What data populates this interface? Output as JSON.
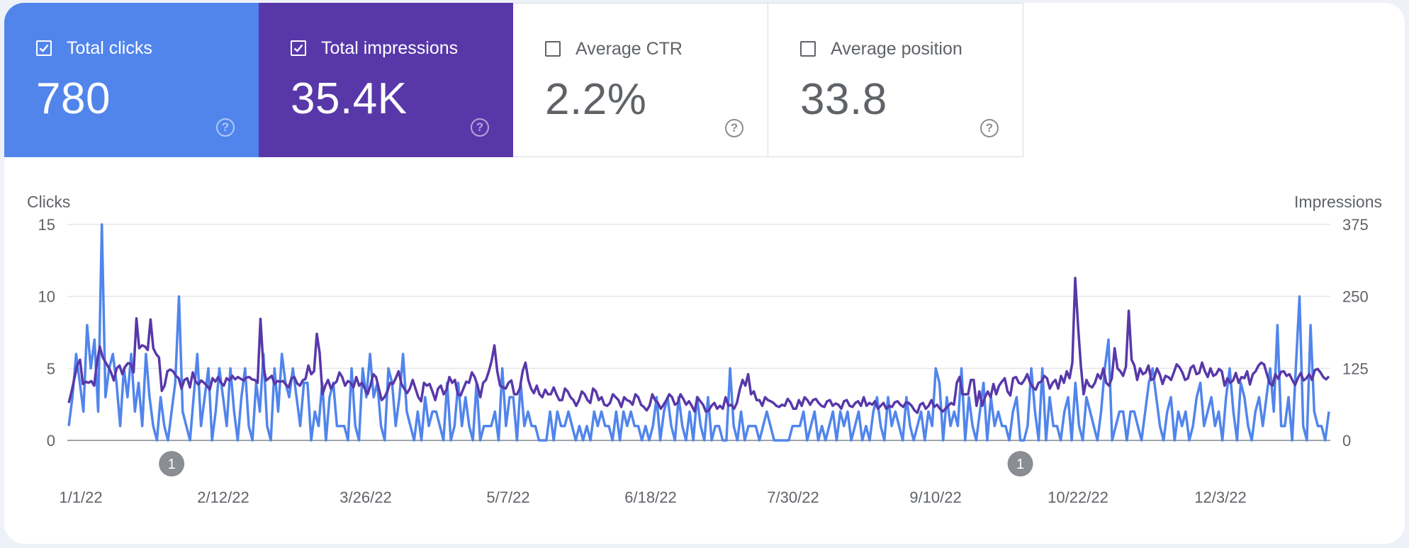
{
  "tiles": [
    {
      "label": "Total clicks",
      "value": "780",
      "checked": true,
      "color": "#5185ec"
    },
    {
      "label": "Total impressions",
      "value": "35.4K",
      "checked": true,
      "color": "#5838a9"
    },
    {
      "label": "Average CTR",
      "value": "2.2%",
      "checked": false,
      "color": "#ffffff"
    },
    {
      "label": "Average position",
      "value": "33.8",
      "checked": false,
      "color": "#ffffff"
    }
  ],
  "help_icon": "question-circle-icon",
  "chart_data": {
    "type": "line",
    "left_axis": {
      "title": "Clicks",
      "ticks": [
        "0",
        "5",
        "10",
        "15"
      ],
      "range": [
        0,
        15
      ]
    },
    "right_axis": {
      "title": "Impressions",
      "ticks": [
        "0",
        "125",
        "250",
        "375"
      ],
      "range": [
        0,
        375
      ]
    },
    "x_ticks": [
      "1/1/22",
      "2/12/22",
      "3/26/22",
      "5/7/22",
      "6/18/22",
      "7/30/22",
      "9/10/22",
      "10/22/22",
      "12/3/22"
    ],
    "annotations": [
      {
        "label": "1",
        "x_index": 28
      },
      {
        "label": "1",
        "x_index": 259
      }
    ],
    "series": [
      {
        "name": "Clicks",
        "axis": "left",
        "color": "#5185ec",
        "values": [
          1,
          3,
          6,
          4,
          2,
          8,
          5,
          7,
          2,
          15,
          3,
          5,
          6,
          4,
          1,
          5,
          3,
          6,
          2,
          4,
          1,
          6,
          3,
          1,
          0,
          3,
          1,
          0,
          2,
          4,
          10,
          2,
          1,
          0,
          3,
          6,
          1,
          3,
          5,
          0,
          2,
          5,
          3,
          1,
          5,
          2,
          0,
          3,
          5,
          1,
          0,
          4,
          2,
          6,
          1,
          0,
          5,
          2,
          6,
          4,
          3,
          5,
          3,
          1,
          4,
          4,
          0,
          2,
          1,
          4,
          0,
          3,
          4,
          1,
          1,
          1,
          0,
          5,
          1,
          0,
          5,
          3,
          6,
          3,
          4,
          1,
          0,
          5,
          4,
          1,
          3,
          6,
          2,
          1,
          0,
          2,
          0,
          3,
          1,
          2,
          2,
          1,
          0,
          4,
          0,
          1,
          4,
          1,
          3,
          1,
          0,
          4,
          0,
          1,
          1,
          1,
          2,
          0,
          5,
          1,
          3,
          3,
          0,
          4,
          1,
          2,
          1,
          1,
          0,
          0,
          0,
          2,
          0,
          2,
          1,
          1,
          2,
          1,
          0,
          1,
          0,
          1,
          0,
          2,
          1,
          2,
          1,
          1,
          0,
          2,
          0,
          2,
          1,
          2,
          1,
          1,
          0,
          1,
          0,
          1,
          3,
          0,
          2,
          3,
          1,
          0,
          3,
          1,
          0,
          2,
          0,
          3,
          1,
          0,
          3,
          0,
          1,
          1,
          0,
          0,
          5,
          1,
          0,
          2,
          0,
          1,
          1,
          1,
          0,
          1,
          2,
          1,
          0,
          0,
          0,
          0,
          0,
          1,
          1,
          1,
          2,
          0,
          1,
          2,
          0,
          1,
          0,
          1,
          2,
          0,
          2,
          1,
          2,
          0,
          1,
          2,
          0,
          1,
          0,
          2,
          3,
          1,
          0,
          3,
          1,
          2,
          1,
          0,
          3,
          1,
          0,
          1,
          2,
          0,
          2,
          1,
          5,
          4,
          0,
          3,
          1,
          2,
          1,
          5,
          0,
          3,
          1,
          0,
          2,
          4,
          0,
          3,
          1,
          2,
          1,
          1,
          0,
          2,
          3,
          0,
          0,
          1,
          5,
          2,
          0,
          5,
          0,
          3,
          1,
          1,
          0,
          2,
          3,
          0,
          4,
          1,
          0,
          3,
          2,
          1,
          0,
          2,
          5,
          7,
          0,
          1,
          2,
          2,
          0,
          2,
          2,
          1,
          0,
          2,
          4,
          5,
          3,
          1,
          0,
          2,
          3,
          0,
          2,
          1,
          2,
          0,
          1,
          3,
          4,
          1,
          2,
          3,
          1,
          2,
          0,
          3,
          5,
          2,
          0,
          4,
          3,
          1,
          0,
          2,
          3,
          1,
          3,
          5,
          2,
          8,
          1,
          1,
          3,
          0,
          5,
          10,
          1,
          0,
          8,
          2,
          1,
          1,
          0,
          2
        ],
        "stroke_width": 3.5
      },
      {
        "name": "Impressions",
        "axis": "right",
        "color": "#5838a9",
        "values": [
          65,
          85,
          108,
          130,
          140,
          98,
          102,
          100,
          103,
          95,
          135,
          163,
          145,
          136,
          128,
          118,
          104,
          125,
          130,
          115,
          128,
          134,
          133,
          118,
          212,
          160,
          165,
          163,
          157,
          210,
          160,
          150,
          144,
          86,
          95,
          120,
          123,
          120,
          112,
          108,
          90,
          105,
          108,
          92,
          118,
          102,
          97,
          104,
          100,
          95,
          88,
          108,
          102,
          110,
          100,
          95,
          108,
          104,
          112,
          106,
          110,
          107,
          104,
          109,
          110,
          106,
          105,
          100,
          211,
          130,
          104,
          108,
          112,
          98,
          103,
          102,
          103,
          97,
          92,
          108,
          110,
          99,
          95,
          104,
          107,
          130,
          115,
          120,
          185,
          152,
          80,
          95,
          105,
          90,
          98,
          102,
          118,
          110,
          95,
          103,
          100,
          92,
          110,
          95,
          100,
          90,
          80,
          95,
          115,
          110,
          90,
          70,
          75,
          85,
          100,
          98,
          108,
          120,
          98,
          90,
          82,
          90,
          105,
          90,
          75,
          68,
          100,
          95,
          98,
          85,
          70,
          90,
          95,
          80,
          88,
          110,
          100,
          105,
          80,
          78,
          90,
          102,
          100,
          118,
          110,
          95,
          75,
          100,
          105,
          120,
          138,
          165,
          120,
          95,
          92,
          90,
          100,
          104,
          80,
          80,
          90,
          120,
          135,
          105,
          90,
          82,
          95,
          80,
          75,
          88,
          80,
          80,
          92,
          80,
          70,
          70,
          90,
          85,
          75,
          70,
          60,
          70,
          85,
          80,
          70,
          65,
          90,
          85,
          70,
          75,
          62,
          60,
          65,
          80,
          75,
          70,
          58,
          75,
          70,
          68,
          62,
          80,
          75,
          62,
          58,
          52,
          60,
          80,
          70,
          65,
          55,
          62,
          70,
          80,
          75,
          62,
          65,
          80,
          72,
          62,
          68,
          60,
          50,
          75,
          68,
          62,
          50,
          52,
          60,
          65,
          55,
          60,
          55,
          75,
          60,
          62,
          55,
          65,
          88,
          105,
          95,
          115,
          80,
          85,
          70,
          70,
          60,
          75,
          70,
          68,
          65,
          60,
          58,
          62,
          60,
          72,
          66,
          55,
          55,
          70,
          60,
          75,
          70,
          62,
          70,
          72,
          65,
          60,
          58,
          68,
          70,
          60,
          64,
          62,
          55,
          68,
          70,
          60,
          58,
          65,
          68,
          60,
          75,
          60,
          65,
          62,
          68,
          55,
          60,
          65,
          55,
          60,
          58,
          66,
          68,
          62,
          58,
          66,
          65,
          60,
          52,
          48,
          62,
          65,
          55,
          60,
          70,
          58,
          62,
          55,
          50,
          55,
          60,
          65,
          62,
          100,
          110,
          80,
          80,
          80,
          105,
          105,
          60,
          85,
          60,
          75,
          85,
          75,
          98,
          80,
          95,
          102,
          108,
          85,
          78,
          108,
          110,
          100,
          98,
          105,
          115,
          100,
          92,
          88,
          100,
          102,
          112,
          108,
          90,
          100,
          105,
          90,
          112,
          100,
          120,
          108,
          135,
          282,
          200,
          130,
          80,
          105,
          95,
          92,
          100,
          115,
          107,
          125,
          100,
          95,
          108,
          160,
          125,
          120,
          112,
          128,
          225,
          140,
          130,
          105,
          125,
          115,
          118,
          130,
          105,
          108,
          125,
          115,
          98,
          112,
          110,
          105,
          118,
          132,
          127,
          118,
          105,
          108,
          126,
          130,
          115,
          117,
          135,
          120,
          110,
          125,
          112,
          115,
          124,
          120,
          95,
          108,
          100,
          104,
          117,
          100,
          110,
          108,
          120,
          97,
          115,
          120,
          130,
          135,
          132,
          115,
          99,
          95,
          115,
          107,
          119,
          120,
          112,
          115,
          105,
          96,
          108,
          117,
          104,
          108,
          115,
          105,
          122,
          124,
          118,
          110,
          106,
          111
        ],
        "stroke_width": 3.5
      }
    ]
  }
}
